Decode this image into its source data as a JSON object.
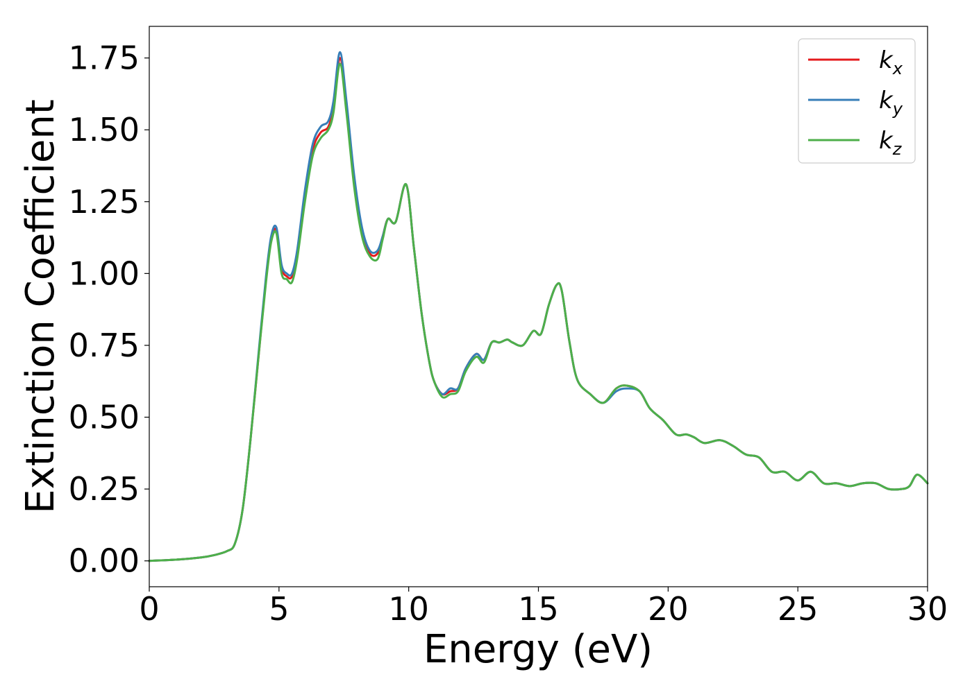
{
  "chart_data": {
    "type": "line",
    "xlabel": "Energy (eV)",
    "ylabel": "Extinction Coefficient",
    "xlim": [
      0,
      30
    ],
    "ylim": [
      -0.09,
      1.86
    ],
    "x_ticks": [
      0,
      5,
      10,
      15,
      20,
      25,
      30
    ],
    "x_tick_labels": [
      "0",
      "5",
      "10",
      "15",
      "20",
      "25",
      "30"
    ],
    "y_ticks": [
      0.0,
      0.25,
      0.5,
      0.75,
      1.0,
      1.25,
      1.5,
      1.75
    ],
    "y_tick_labels": [
      "0.00",
      "0.25",
      "0.50",
      "0.75",
      "1.00",
      "1.25",
      "1.50",
      "1.75"
    ],
    "grid": false,
    "legend_position": "top-right",
    "x": [
      0.0,
      1.0,
      2.0,
      2.5,
      3.0,
      3.3,
      3.6,
      3.9,
      4.2,
      4.5,
      4.7,
      4.9,
      5.1,
      5.3,
      5.5,
      5.7,
      6.0,
      6.3,
      6.6,
      6.9,
      7.1,
      7.35,
      7.6,
      7.9,
      8.2,
      8.5,
      8.8,
      9.0,
      9.2,
      9.5,
      9.9,
      10.2,
      10.5,
      10.8,
      11.0,
      11.3,
      11.6,
      11.9,
      12.2,
      12.6,
      12.9,
      13.2,
      13.5,
      13.8,
      14.0,
      14.4,
      14.8,
      15.1,
      15.4,
      15.7,
      15.9,
      16.2,
      16.5,
      17.0,
      17.5,
      18.0,
      18.4,
      18.9,
      19.3,
      19.8,
      20.3,
      20.7,
      21.0,
      21.4,
      22.0,
      22.5,
      23.0,
      23.5,
      24.0,
      24.5,
      25.0,
      25.5,
      26.0,
      26.5,
      27.0,
      27.5,
      28.0,
      28.5,
      29.0,
      29.3,
      29.6,
      30.0
    ],
    "series": [
      {
        "name": "k_x",
        "color": "#e41a1c",
        "values": [
          0.0,
          0.004,
          0.012,
          0.02,
          0.034,
          0.06,
          0.18,
          0.42,
          0.7,
          0.98,
          1.12,
          1.15,
          1.02,
          0.99,
          0.99,
          1.07,
          1.27,
          1.43,
          1.49,
          1.51,
          1.58,
          1.75,
          1.58,
          1.32,
          1.15,
          1.07,
          1.07,
          1.13,
          1.19,
          1.18,
          1.31,
          1.09,
          0.86,
          0.69,
          0.62,
          0.58,
          0.59,
          0.6,
          0.67,
          0.72,
          0.7,
          0.76,
          0.76,
          0.77,
          0.76,
          0.75,
          0.8,
          0.79,
          0.89,
          0.96,
          0.94,
          0.76,
          0.63,
          0.58,
          0.55,
          0.6,
          0.61,
          0.59,
          0.53,
          0.49,
          0.44,
          0.44,
          0.43,
          0.41,
          0.42,
          0.4,
          0.37,
          0.36,
          0.31,
          0.31,
          0.28,
          0.31,
          0.27,
          0.27,
          0.26,
          0.27,
          0.27,
          0.25,
          0.25,
          0.26,
          0.3,
          0.27
        ]
      },
      {
        "name": "k_y",
        "color": "#377eb8",
        "values": [
          0.0,
          0.004,
          0.012,
          0.02,
          0.034,
          0.06,
          0.18,
          0.42,
          0.71,
          0.99,
          1.13,
          1.16,
          1.03,
          1.0,
          1.0,
          1.08,
          1.29,
          1.45,
          1.51,
          1.53,
          1.6,
          1.77,
          1.6,
          1.34,
          1.16,
          1.08,
          1.08,
          1.13,
          1.19,
          1.18,
          1.31,
          1.09,
          0.86,
          0.69,
          0.62,
          0.58,
          0.6,
          0.6,
          0.67,
          0.72,
          0.7,
          0.76,
          0.76,
          0.77,
          0.76,
          0.75,
          0.8,
          0.79,
          0.89,
          0.96,
          0.94,
          0.76,
          0.63,
          0.58,
          0.55,
          0.59,
          0.6,
          0.59,
          0.53,
          0.49,
          0.44,
          0.44,
          0.43,
          0.41,
          0.42,
          0.4,
          0.37,
          0.36,
          0.31,
          0.31,
          0.28,
          0.31,
          0.27,
          0.27,
          0.26,
          0.27,
          0.27,
          0.25,
          0.25,
          0.26,
          0.3,
          0.27
        ]
      },
      {
        "name": "k_z",
        "color": "#4daf4a",
        "values": [
          0.0,
          0.004,
          0.012,
          0.02,
          0.034,
          0.06,
          0.18,
          0.42,
          0.7,
          0.97,
          1.11,
          1.14,
          1.0,
          0.98,
          0.97,
          1.05,
          1.25,
          1.41,
          1.47,
          1.5,
          1.56,
          1.73,
          1.56,
          1.3,
          1.13,
          1.06,
          1.05,
          1.12,
          1.19,
          1.18,
          1.31,
          1.09,
          0.86,
          0.69,
          0.62,
          0.57,
          0.58,
          0.59,
          0.66,
          0.71,
          0.69,
          0.76,
          0.76,
          0.77,
          0.76,
          0.75,
          0.8,
          0.79,
          0.89,
          0.96,
          0.94,
          0.76,
          0.63,
          0.58,
          0.55,
          0.6,
          0.61,
          0.59,
          0.53,
          0.49,
          0.44,
          0.44,
          0.43,
          0.41,
          0.42,
          0.4,
          0.37,
          0.36,
          0.31,
          0.31,
          0.28,
          0.31,
          0.27,
          0.27,
          0.26,
          0.27,
          0.27,
          0.25,
          0.25,
          0.26,
          0.3,
          0.27
        ]
      }
    ],
    "legend": [
      {
        "base": "k",
        "sub": "x",
        "color": "#e41a1c"
      },
      {
        "base": "k",
        "sub": "y",
        "color": "#377eb8"
      },
      {
        "base": "k",
        "sub": "z",
        "color": "#4daf4a"
      }
    ]
  }
}
